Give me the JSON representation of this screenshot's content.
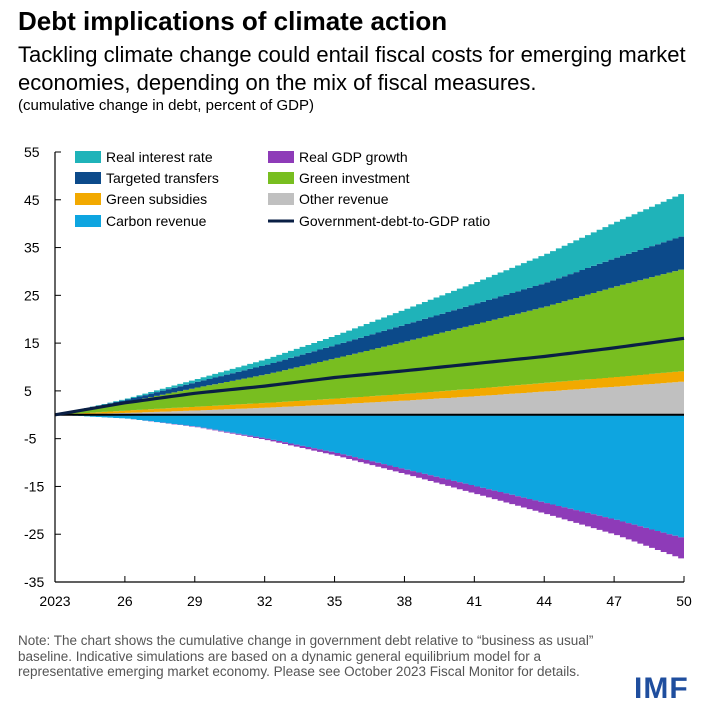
{
  "title": "Debt implications of climate action",
  "subtitle": "Tackling climate change could entail fiscal costs for emerging market economies, depending on the mix of fiscal measures.",
  "units": "(cumulative change in debt, percent of GDP)",
  "note": "Note: The chart shows the cumulative change in government debt relative to “business as usual” baseline. Indicative simulations are based on a dynamic general equilibrium model for a representative emerging market economy. Please see October 2023 Fiscal Monitor for details.",
  "logo": "IMF",
  "chart_data": {
    "type": "area",
    "title": "Debt implications of climate action",
    "ylabel": "cumulative change in debt, percent of GDP",
    "xlim": [
      2023,
      2050
    ],
    "ylim": [
      -35,
      55
    ],
    "yticks": [
      55,
      45,
      35,
      25,
      15,
      5,
      -5,
      -15,
      -25,
      -35
    ],
    "xticks": [
      {
        "year": 2023,
        "label": "2023"
      },
      {
        "year": 2026,
        "label": "26"
      },
      {
        "year": 2029,
        "label": "29"
      },
      {
        "year": 2032,
        "label": "32"
      },
      {
        "year": 2035,
        "label": "35"
      },
      {
        "year": 2038,
        "label": "38"
      },
      {
        "year": 2041,
        "label": "41"
      },
      {
        "year": 2044,
        "label": "44"
      },
      {
        "year": 2047,
        "label": "47"
      },
      {
        "year": 2050,
        "label": "50"
      }
    ],
    "x": [
      2023,
      2026,
      2029,
      2032,
      2035,
      2038,
      2041,
      2044,
      2047,
      2050
    ],
    "stack_positive": [
      {
        "name": "Other revenue",
        "color": "#c0c0c0",
        "values": [
          0,
          0.4,
          0.9,
          1.5,
          2.2,
          3.0,
          3.9,
          4.9,
          5.9,
          7.0
        ]
      },
      {
        "name": "Green subsidies",
        "color": "#f2a900",
        "values": [
          0,
          0.5,
          0.8,
          1.0,
          1.2,
          1.4,
          1.6,
          1.8,
          2.0,
          2.2
        ]
      },
      {
        "name": "Green investment",
        "color": "#78be20",
        "values": [
          0,
          1.8,
          4.0,
          6.0,
          8.5,
          11.0,
          13.5,
          16.0,
          19.0,
          21.5
        ]
      },
      {
        "name": "Targeted transfers",
        "color": "#0c4a8a",
        "values": [
          0,
          0.5,
          1.2,
          2.0,
          2.8,
          3.6,
          4.3,
          5.0,
          6.0,
          7.0
        ]
      },
      {
        "name": "Real interest rate",
        "color": "#1fb3b9",
        "values": [
          0,
          0.2,
          0.6,
          1.2,
          2.0,
          3.2,
          4.5,
          6.0,
          7.5,
          9.0
        ]
      }
    ],
    "stack_negative": [
      {
        "name": "Carbon revenue",
        "color": "#0ea5e0",
        "values": [
          0,
          -0.8,
          -2.5,
          -5.0,
          -8.0,
          -11.5,
          -15.0,
          -18.5,
          -22.0,
          -26.0
        ]
      },
      {
        "name": "Real GDP growth",
        "color": "#8e3bb8",
        "values": [
          0,
          0,
          -0.1,
          -0.3,
          -0.6,
          -1.0,
          -1.6,
          -2.3,
          -3.2,
          -4.5
        ]
      }
    ],
    "line": {
      "name": "Government-debt-to-GDP ratio",
      "color": "#0a1f44",
      "values": [
        0,
        2.5,
        4.5,
        6.0,
        7.8,
        9.2,
        10.7,
        12.2,
        14.0,
        16.0
      ]
    },
    "legend": [
      {
        "label": "Real interest rate",
        "color": "#1fb3b9",
        "kind": "box"
      },
      {
        "label": "Real GDP growth",
        "color": "#8e3bb8",
        "kind": "box"
      },
      {
        "label": "Targeted transfers",
        "color": "#0c4a8a",
        "kind": "box"
      },
      {
        "label": "Green investment",
        "color": "#78be20",
        "kind": "box"
      },
      {
        "label": "Green subsidies",
        "color": "#f2a900",
        "kind": "box"
      },
      {
        "label": "Other revenue",
        "color": "#c0c0c0",
        "kind": "box"
      },
      {
        "label": "Carbon revenue",
        "color": "#0ea5e0",
        "kind": "box"
      },
      {
        "label": "Government-debt-to-GDP ratio",
        "color": "#0a1f44",
        "kind": "line"
      }
    ],
    "legend_position": "top-left",
    "grid": false
  }
}
